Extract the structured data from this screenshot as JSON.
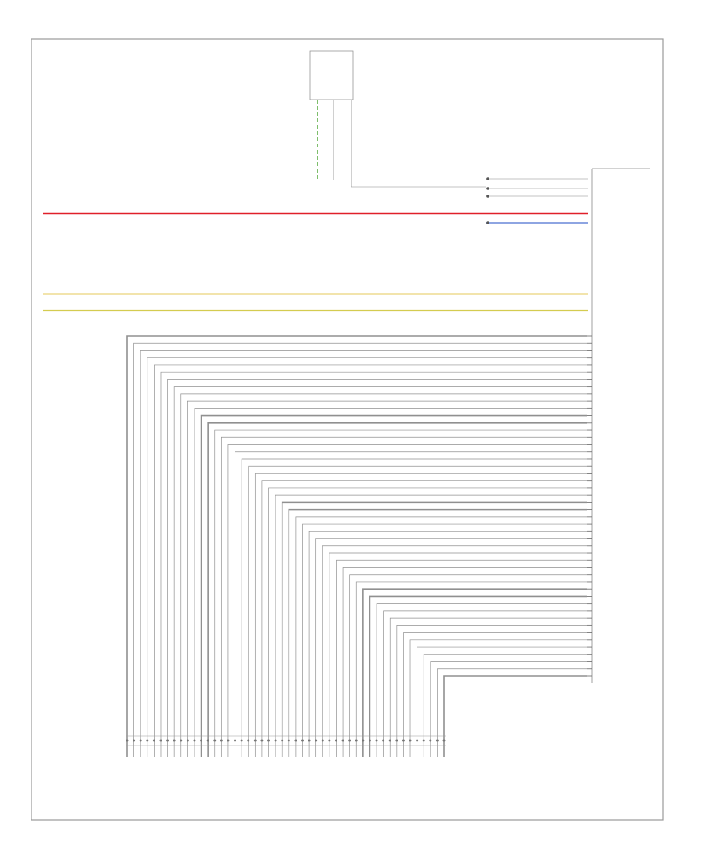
{
  "diagram": {
    "footer_code": "",
    "top_connector": {
      "name": "",
      "pins": [
        {
          "pin": "",
          "wire_color": ""
        },
        {
          "pin": "",
          "wire_color": ""
        },
        {
          "pin": "",
          "wire_color": ""
        }
      ],
      "side_notes": [
        "",
        "",
        "",
        "",
        ""
      ]
    },
    "module": {
      "name": "",
      "upper_connections": [
        {
          "pin": "",
          "wire": "",
          "circuit": "",
          "label": "",
          "color": "#000000"
        },
        {
          "pin": "",
          "wire": "",
          "circuit": "",
          "label": "",
          "color": "#000000"
        },
        {
          "pin": "",
          "wire": "",
          "circuit": "",
          "label": "",
          "color": "#000000"
        },
        {
          "pin": "",
          "wire": "",
          "circuit": "",
          "label": "",
          "color": "#000000"
        }
      ]
    },
    "power_wires": [
      {
        "color_hex": "#e0202a",
        "wire_color": "",
        "pin": ""
      },
      {
        "color_hex": "#f0e0a0",
        "wire_color": "",
        "pin": ""
      },
      {
        "color_hex": "#d4cc50",
        "wire_color": "",
        "pin": ""
      }
    ],
    "bus_wire_color": "#909090",
    "bottom_connector": {
      "name": ""
    }
  }
}
